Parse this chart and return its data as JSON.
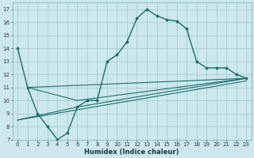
{
  "xlabel": "Humidex (Indice chaleur)",
  "bg_color": "#cce8ec",
  "grid_color": "#aaccd4",
  "line_color": "#1a6e6a",
  "xlim": [
    -0.5,
    23.5
  ],
  "ylim": [
    7,
    17.5
  ],
  "yticks": [
    7,
    8,
    9,
    10,
    11,
    12,
    13,
    14,
    15,
    16,
    17
  ],
  "xticks": [
    0,
    1,
    2,
    3,
    4,
    5,
    6,
    7,
    8,
    9,
    10,
    11,
    12,
    13,
    14,
    15,
    16,
    17,
    18,
    19,
    20,
    21,
    22,
    23
  ],
  "main_x": [
    0,
    1,
    2,
    3,
    4,
    5,
    6,
    7,
    8,
    9,
    10,
    11,
    12,
    13,
    14,
    15,
    16,
    17,
    18,
    19,
    20,
    21,
    22,
    23
  ],
  "main_y": [
    14,
    11,
    9,
    8,
    7,
    7.5,
    9.5,
    10,
    10,
    13,
    13.5,
    14.5,
    16.3,
    17,
    16.5,
    16.2,
    16.1,
    15.5,
    13,
    12.5,
    12.5,
    12.5,
    12,
    11.7
  ],
  "extra_lines": [
    {
      "x": [
        1,
        23
      ],
      "y": [
        11,
        11.7
      ]
    },
    {
      "x": [
        1,
        6,
        23
      ],
      "y": [
        11,
        10,
        11.7
      ]
    },
    {
      "x": [
        0,
        6,
        23
      ],
      "y": [
        8.5,
        9.5,
        11.7
      ]
    },
    {
      "x": [
        0,
        23
      ],
      "y": [
        8.5,
        11.5
      ]
    }
  ]
}
